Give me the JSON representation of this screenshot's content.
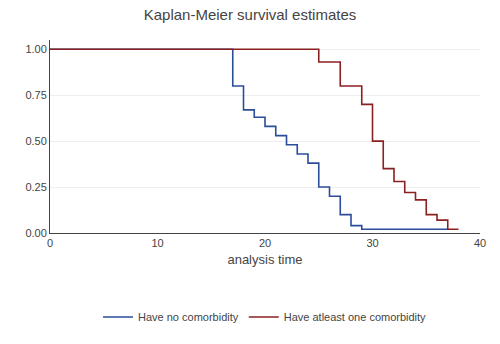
{
  "chart_data": {
    "type": "line",
    "title": "Kaplan-Meier survival estimates",
    "xlabel": "analysis time",
    "xlim": [
      0,
      40
    ],
    "ylim": [
      0,
      1.05
    ],
    "xticks": [
      0,
      10,
      20,
      30,
      40
    ],
    "yticks": [
      {
        "value": 0,
        "label": "0.00"
      },
      0.25,
      {
        "value": 0.5,
        "label": "0.50"
      },
      0.75,
      {
        "value": 1,
        "label": "1.00"
      }
    ],
    "grid": "y",
    "legend": "bottom",
    "series": [
      {
        "name": "Have no comorbidity",
        "color": "#2b4d9b",
        "x": [
          0,
          17,
          17,
          18,
          18,
          19,
          19,
          20,
          20,
          21,
          21,
          22,
          22,
          23,
          23,
          24,
          24,
          25,
          25,
          26,
          26,
          27,
          27,
          28,
          28,
          29,
          29,
          30,
          30,
          37
        ],
        "values": [
          1.0,
          1.0,
          0.8,
          0.8,
          0.67,
          0.67,
          0.63,
          0.63,
          0.58,
          0.58,
          0.53,
          0.53,
          0.48,
          0.48,
          0.43,
          0.43,
          0.38,
          0.38,
          0.25,
          0.25,
          0.2,
          0.2,
          0.1,
          0.1,
          0.04,
          0.04,
          0.02,
          0.02,
          0.02,
          0.02
        ]
      },
      {
        "name": "Have atleast one comorbidity",
        "color": "#8b2020",
        "x": [
          0,
          25,
          25,
          27,
          27,
          29,
          29,
          30,
          30,
          31,
          31,
          32,
          32,
          33,
          33,
          34,
          34,
          35,
          35,
          36,
          36,
          37,
          37,
          38
        ],
        "values": [
          1.0,
          1.0,
          0.93,
          0.93,
          0.8,
          0.8,
          0.7,
          0.7,
          0.5,
          0.5,
          0.35,
          0.35,
          0.28,
          0.28,
          0.22,
          0.22,
          0.18,
          0.18,
          0.1,
          0.1,
          0.07,
          0.07,
          0.02,
          0.02
        ]
      }
    ]
  }
}
